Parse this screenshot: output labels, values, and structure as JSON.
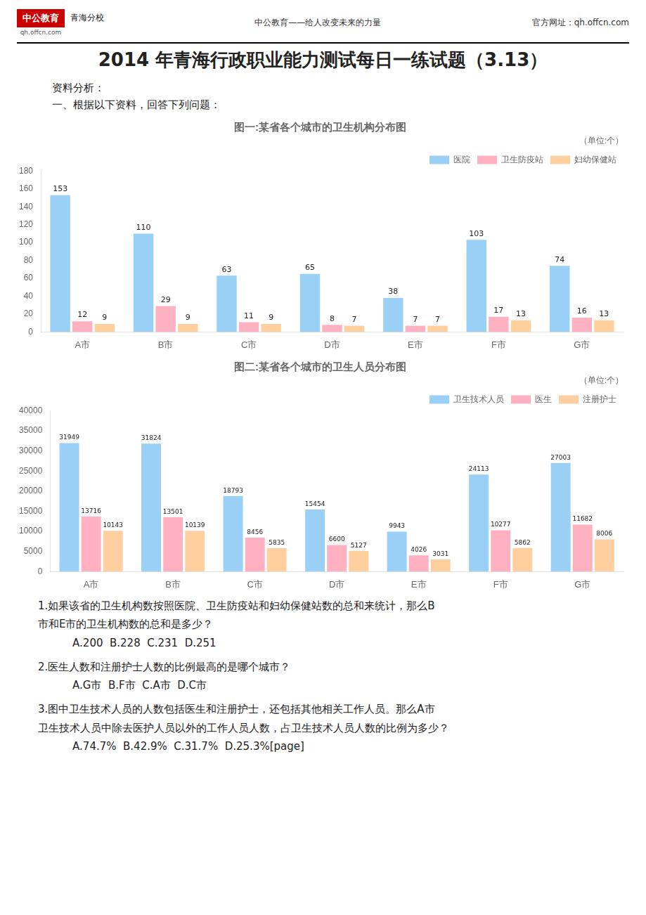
{
  "title": "2014 年青海行政职业能力测试每日一练试题（3.13）",
  "annotations": [
    "中公教育",
    "青海分校",
    "qh.offcn.com",
    "中公教育——给人改变未来的力量",
    "官方网址：qh.offcn.com",
    "资料分析：",
    "一、根据以下资料，回答下列问题：",
    "1.如果该省的卫生机构数按照医院、卫生防疫站和妇幼保健站数的总和来统计，那么B",
    "市和E市的卫生机构数的总和是多少？",
    "    A.200  B.228  C.231  D.251",
    "2.医生人数和注册护士人数的比例最高的是哪个城市？",
    "    A.G市  B.F市  C.A市  D.C市",
    "3.图中卫生技术人员的人数包括医生和注册护士，还包括其他相关工作人员。那么A市",
    "卫生技术人员中除去医护人员以外的工作人员人数，占卫生技术人员人数的比例为多少？",
    "    A.74.7%  B.42.9%  C.31.7%  D.25.3%[page]"
  ],
  "chart_data": [
    {
      "type": "bar",
      "title": "图一:某省各个城市的卫生机构分布图",
      "subtitle": "（单位:个）",
      "categories": [
        "A市",
        "B市",
        "C市",
        "D市",
        "E市",
        "F市",
        "G市"
      ],
      "series": [
        {
          "name": "医院",
          "values": [
            153,
            110,
            63,
            65,
            38,
            103,
            74
          ]
        },
        {
          "name": "卫生防疫站",
          "values": [
            12,
            29,
            11,
            8,
            7,
            17,
            16
          ]
        },
        {
          "name": "妇幼保健站",
          "values": [
            9,
            9,
            9,
            7,
            7,
            13,
            13
          ]
        }
      ],
      "ylim": [
        0,
        180
      ],
      "yticks": [
        0,
        20,
        40,
        60,
        80,
        100,
        120,
        140,
        160,
        180
      ],
      "grid": false,
      "legend": "upper right",
      "data_labels": true
    },
    {
      "type": "bar",
      "title": "图二:某省各个城市的卫生人员分布图",
      "subtitle": "（单位:个）",
      "categories": [
        "A市",
        "B市",
        "C市",
        "D市",
        "E市",
        "F市",
        "G市"
      ],
      "series": [
        {
          "name": "卫生技术人员",
          "values": [
            31949,
            31824,
            18793,
            15454,
            9943,
            24113,
            27003
          ]
        },
        {
          "name": "医生",
          "values": [
            13716,
            13501,
            8456,
            6600,
            4026,
            10277,
            11682
          ]
        },
        {
          "name": "注册护士",
          "values": [
            10143,
            10139,
            5835,
            5127,
            3031,
            5862,
            8006
          ]
        }
      ],
      "ylim": [
        0,
        40000
      ],
      "yticks": [
        0,
        5000,
        10000,
        15000,
        20000,
        25000,
        30000,
        35000,
        40000
      ],
      "grid": false,
      "legend": "upper right",
      "data_labels": true
    }
  ]
}
